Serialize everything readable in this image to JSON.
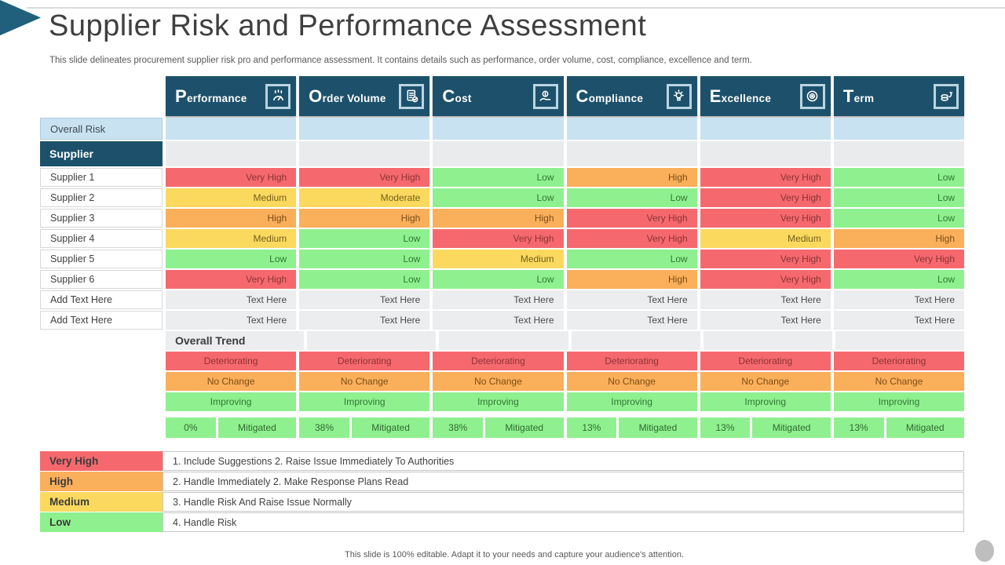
{
  "slide": {
    "title": "Supplier Risk and Performance Assessment",
    "subtitle": "This slide delineates procurement supplier risk pro and performance assessment. It contains details such as performance, order volume, cost, compliance, excellence and term.",
    "footer": "This slide is 100% editable. Adapt it to your needs and capture your audience's attention."
  },
  "palette": {
    "header_teal": "#1D516B",
    "very_high": "#F5696E",
    "high": "#FAAF5B",
    "medium": "#FBD95F",
    "low": "#8FF08F",
    "overall_risk_blue": "#C9E2F1",
    "neutral_gray": "#E9EBED"
  },
  "table": {
    "columns": [
      {
        "label": "Performance",
        "icon": "gauge-icon"
      },
      {
        "label": "Order Volume",
        "icon": "document-check-icon"
      },
      {
        "label": "Cost",
        "icon": "cost-hand-icon"
      },
      {
        "label": "Compliance",
        "icon": "idea-bulb-icon"
      },
      {
        "label": "Excellence",
        "icon": "target-icon"
      },
      {
        "label": "Term",
        "icon": "coins-icon"
      }
    ],
    "overall_risk_label": "Overall Risk",
    "supplier_label": "Supplier",
    "rows": [
      {
        "label": "Supplier 1",
        "placeholder": false,
        "cells": [
          {
            "text": "Very High",
            "level": "very-high"
          },
          {
            "text": "Very High",
            "level": "very-high"
          },
          {
            "text": "Low",
            "level": "low"
          },
          {
            "text": "High",
            "level": "high"
          },
          {
            "text": "Very High",
            "level": "very-high"
          },
          {
            "text": "Low",
            "level": "low"
          }
        ]
      },
      {
        "label": "Supplier 2",
        "placeholder": false,
        "cells": [
          {
            "text": "Medium",
            "level": "medium"
          },
          {
            "text": "Moderate",
            "level": "medium"
          },
          {
            "text": "Low",
            "level": "low"
          },
          {
            "text": "Low",
            "level": "low"
          },
          {
            "text": "Very High",
            "level": "very-high"
          },
          {
            "text": "Low",
            "level": "low"
          }
        ]
      },
      {
        "label": "Supplier 3",
        "placeholder": false,
        "cells": [
          {
            "text": "High",
            "level": "high"
          },
          {
            "text": "High",
            "level": "high"
          },
          {
            "text": "High",
            "level": "high"
          },
          {
            "text": "Very High",
            "level": "very-high"
          },
          {
            "text": "Very High",
            "level": "very-high"
          },
          {
            "text": "Low",
            "level": "low"
          }
        ]
      },
      {
        "label": "Supplier 4",
        "placeholder": false,
        "cells": [
          {
            "text": "Medium",
            "level": "medium"
          },
          {
            "text": "Low",
            "level": "low"
          },
          {
            "text": "Very High",
            "level": "very-high"
          },
          {
            "text": "Very High",
            "level": "very-high"
          },
          {
            "text": "Medium",
            "level": "medium"
          },
          {
            "text": "High",
            "level": "high"
          }
        ]
      },
      {
        "label": "Supplier 5",
        "placeholder": false,
        "cells": [
          {
            "text": "Low",
            "level": "low"
          },
          {
            "text": "Low",
            "level": "low"
          },
          {
            "text": "Medium",
            "level": "medium"
          },
          {
            "text": "Low",
            "level": "low"
          },
          {
            "text": "Very High",
            "level": "very-high"
          },
          {
            "text": "Very High",
            "level": "very-high"
          }
        ]
      },
      {
        "label": "Supplier 6",
        "placeholder": false,
        "cells": [
          {
            "text": "Very High",
            "level": "very-high"
          },
          {
            "text": "Low",
            "level": "low"
          },
          {
            "text": "Low",
            "level": "low"
          },
          {
            "text": "High",
            "level": "high"
          },
          {
            "text": "Very High",
            "level": "very-high"
          },
          {
            "text": "Low",
            "level": "low"
          }
        ]
      },
      {
        "label": "Add Text Here",
        "placeholder": true,
        "cells": [
          {
            "text": "Text Here",
            "level": "text"
          },
          {
            "text": "Text Here",
            "level": "text"
          },
          {
            "text": "Text Here",
            "level": "text"
          },
          {
            "text": "Text Here",
            "level": "text"
          },
          {
            "text": "Text Here",
            "level": "text"
          },
          {
            "text": "Text Here",
            "level": "text"
          }
        ]
      },
      {
        "label": "Add Text Here",
        "placeholder": true,
        "cells": [
          {
            "text": "Text Here",
            "level": "text"
          },
          {
            "text": "Text Here",
            "level": "text"
          },
          {
            "text": "Text Here",
            "level": "text"
          },
          {
            "text": "Text Here",
            "level": "text"
          },
          {
            "text": "Text Here",
            "level": "text"
          },
          {
            "text": "Text Here",
            "level": "text"
          }
        ]
      }
    ],
    "overall_trend_label": "Overall Trend",
    "trend_rows": [
      {
        "label": "Deteriorating",
        "level": "very-high"
      },
      {
        "label": "No Change",
        "level": "high"
      },
      {
        "label": "Improving",
        "level": "low"
      }
    ],
    "mitigated_label": "Mitigated",
    "mitigated_pcts": [
      "0%",
      "38%",
      "38%",
      "13%",
      "13%",
      "13%"
    ]
  },
  "legend": [
    {
      "label": "Very High",
      "level": "very-high",
      "desc": "1. Include Suggestions 2. Raise Issue Immediately To Authorities"
    },
    {
      "label": "High",
      "level": "high",
      "desc": "2. Handle Immediately 2. Make Response Plans Read"
    },
    {
      "label": "Medium",
      "level": "medium",
      "desc": "3. Handle Risk And Raise Issue Normally"
    },
    {
      "label": "Low",
      "level": "low",
      "desc": "4. Handle Risk"
    }
  ]
}
